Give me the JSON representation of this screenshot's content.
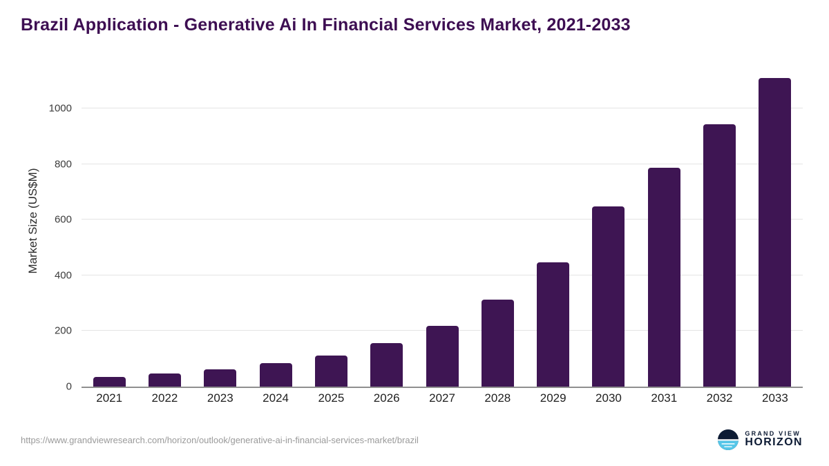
{
  "title": "Brazil Application - Generative Ai In Financial Services Market, 2021-2033",
  "footer": {
    "source_url": "https://www.grandviewresearch.com/horizon/outlook/generative-ai-in-financial-services-market/brazil",
    "brand_line1": "GRAND VIEW",
    "brand_line2": "HORIZON"
  },
  "colors": {
    "bar": "#3e1553",
    "title": "#3d0e52",
    "grid": "#e4e4e4",
    "axis_line": "#8f8f8f",
    "tick_text": "#3c3c3c",
    "footer_text": "#9a9a9a",
    "brand_navy": "#0d1b34",
    "brand_blue": "#55c6e8"
  },
  "chart_data": {
    "type": "bar",
    "title": "Brazil Application - Generative Ai In Financial Services Market, 2021-2033",
    "categories": [
      "2021",
      "2022",
      "2023",
      "2024",
      "2025",
      "2026",
      "2027",
      "2028",
      "2029",
      "2030",
      "2031",
      "2032",
      "2033"
    ],
    "values": [
      36,
      47,
      62,
      84,
      113,
      157,
      219,
      313,
      448,
      648,
      787,
      944,
      1110
    ],
    "xlabel": "",
    "ylabel": "Market Size (US$M)",
    "ylim": [
      0,
      1135
    ],
    "yticks": [
      0,
      200,
      400,
      600,
      800,
      1000
    ],
    "grid": true,
    "legend": false,
    "bar_color": "#3e1553"
  }
}
